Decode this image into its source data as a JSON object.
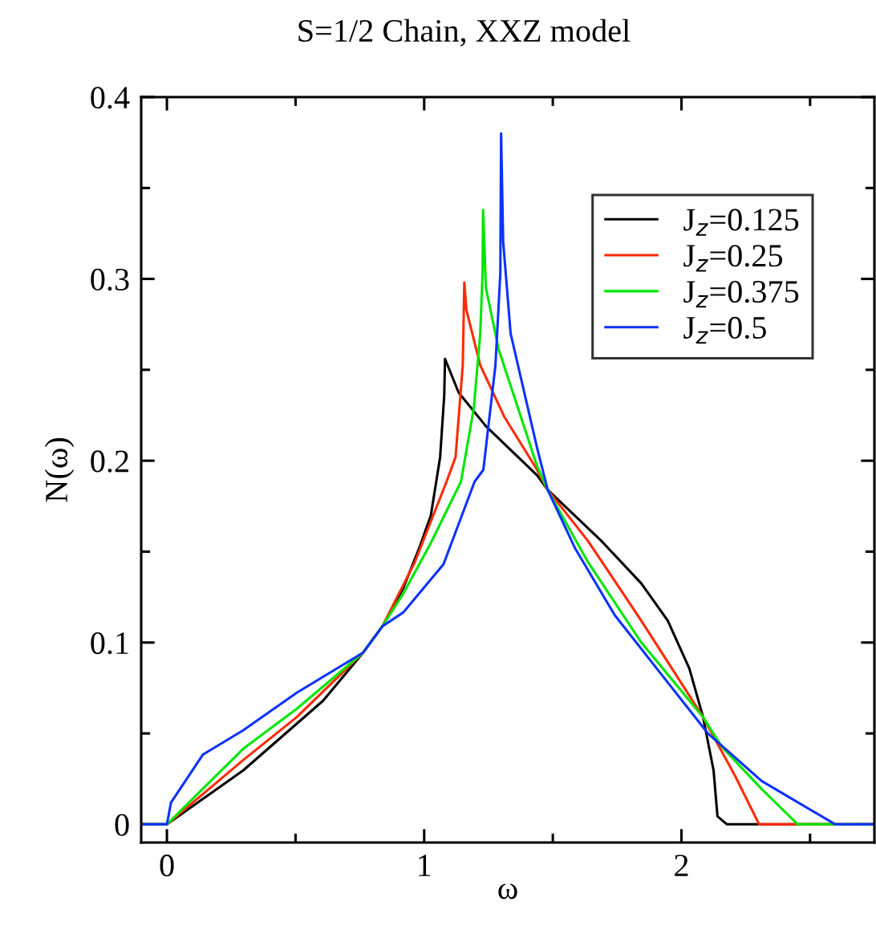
{
  "chart_data": {
    "type": "line",
    "title": "S=1/2 Chain, XXZ model",
    "xlabel": "ω",
    "ylabel": "N(ω)",
    "xlim": [
      -0.1,
      2.75
    ],
    "ylim": [
      -0.01,
      0.4
    ],
    "xticks": [
      0,
      {
        "value": 0.5,
        "label": null
      },
      1,
      {
        "value": 1.5,
        "label": null
      },
      2,
      {
        "value": 2.5,
        "label": null
      }
    ],
    "yticks": [
      0,
      {
        "value": 0.05,
        "label": null
      },
      0.1,
      {
        "value": 0.15,
        "label": null
      },
      0.2,
      {
        "value": 0.25,
        "label": null
      },
      0.3,
      {
        "value": 0.35,
        "label": null
      },
      0.4
    ],
    "grid": false,
    "legend": "top right",
    "marker": "none",
    "line_style": "solid",
    "series": [
      {
        "name": "J$_{z}$=0.125",
        "color": "#000000",
        "x": [
          -0.1,
          0,
          0.296,
          0.607,
          0.763,
          0.838,
          0.919,
          0.981,
          1.026,
          1.062,
          1.078,
          1.081,
          1.134,
          1.24,
          1.439,
          1.48,
          1.688,
          1.844,
          1.947,
          2.031,
          2.084,
          2.125,
          2.14,
          2.177,
          2.75
        ],
        "values": [
          0,
          0,
          0.0296,
          0.068,
          0.0945,
          0.109,
          0.13,
          0.152,
          0.17,
          0.202,
          0.236,
          0.256,
          0.2375,
          0.219,
          0.192,
          0.184,
          0.156,
          0.1325,
          0.112,
          0.0856,
          0.059,
          0.0296,
          0.0044,
          0,
          0
        ]
      },
      {
        "name": "J$_{z}$=0.25",
        "color": "#ff2a00",
        "x": [
          -0.1,
          0,
          0.296,
          0.505,
          0.763,
          0.838,
          0.963,
          1.087,
          1.122,
          1.15,
          1.156,
          1.164,
          1.218,
          1.312,
          1.439,
          1.48,
          1.636,
          1.844,
          2.084,
          2.209,
          2.302,
          2.75
        ],
        "values": [
          0,
          0,
          0.0353,
          0.059,
          0.0945,
          0.109,
          0.144,
          0.1885,
          0.202,
          0.2525,
          0.298,
          0.283,
          0.2525,
          0.224,
          0.195,
          0.184,
          0.156,
          0.112,
          0.059,
          0.0265,
          0,
          0
        ]
      },
      {
        "name": "J$_{z}$=0.375",
        "color": "#00e600",
        "x": [
          -0.1,
          0,
          0.296,
          0.505,
          0.763,
          0.838,
          0.919,
          1.025,
          1.143,
          1.193,
          1.218,
          1.227,
          1.229,
          1.24,
          1.29,
          1.439,
          1.48,
          1.636,
          1.844,
          2.084,
          2.156,
          2.312,
          2.452,
          2.75
        ],
        "values": [
          0,
          0,
          0.0415,
          0.0636,
          0.0945,
          0.109,
          0.127,
          0.1545,
          0.1885,
          0.229,
          0.27,
          0.303,
          0.338,
          0.295,
          0.261,
          0.197,
          0.184,
          0.1444,
          0.1,
          0.059,
          0.0428,
          0.0194,
          0,
          0
        ]
      },
      {
        "name": "J$_{z}$=0.5",
        "color": "#0a32ff",
        "x": [
          -0.1,
          0,
          0.016,
          0.14,
          0.296,
          0.505,
          0.763,
          0.838,
          0.919,
          1.075,
          1.196,
          1.23,
          1.277,
          1.296,
          1.299,
          1.307,
          1.336,
          1.439,
          1.48,
          1.586,
          1.741,
          1.947,
          2.103,
          2.312,
          2.598,
          2.75
        ],
        "values": [
          0,
          0,
          0.012,
          0.0384,
          0.0517,
          0.0724,
          0.0945,
          0.109,
          0.1166,
          0.143,
          0.1885,
          0.195,
          0.2525,
          0.303,
          0.38,
          0.3205,
          0.27,
          0.207,
          0.184,
          0.152,
          0.115,
          0.078,
          0.05,
          0.0238,
          0,
          0
        ]
      }
    ]
  }
}
